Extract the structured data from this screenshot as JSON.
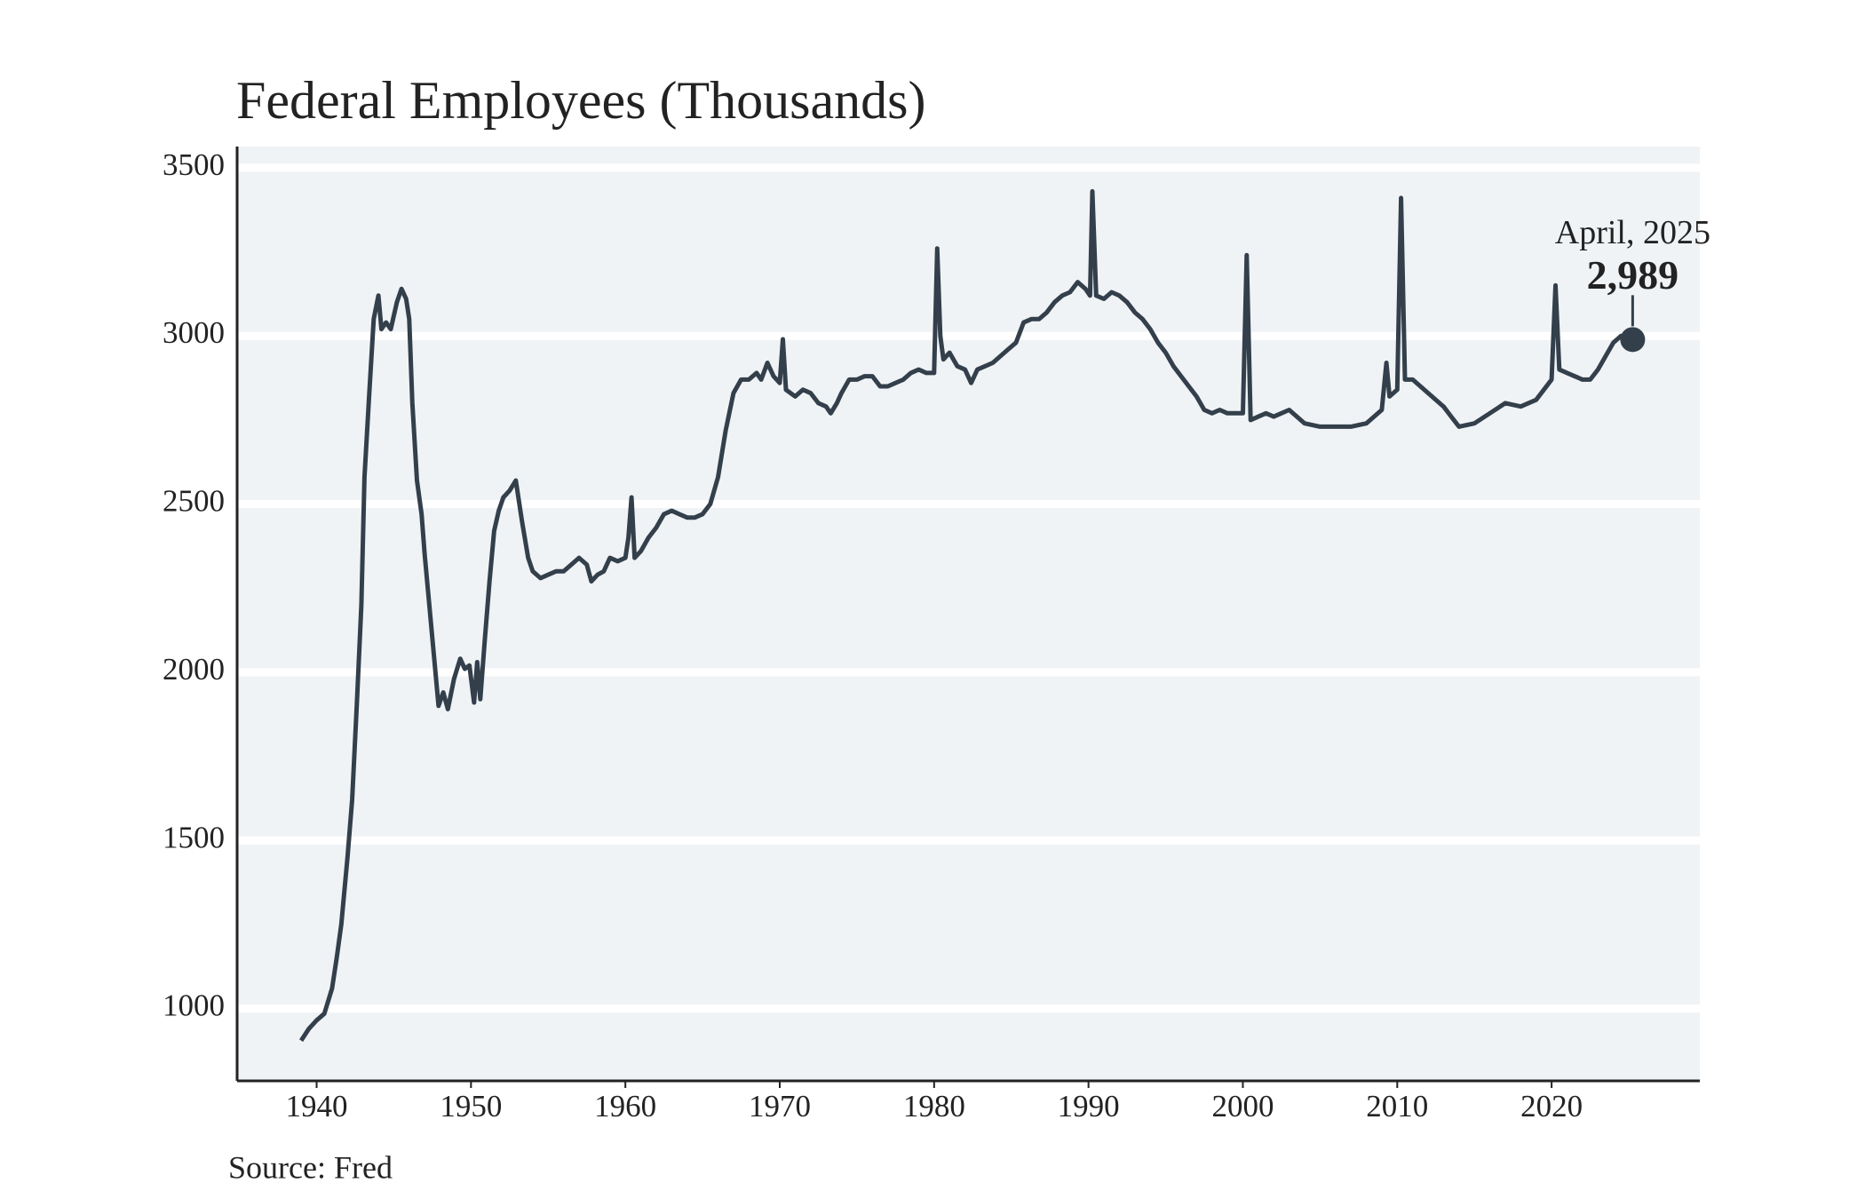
{
  "chart_data": {
    "type": "line",
    "title": "Federal Employees (Thousands)",
    "source": "Source: Fred",
    "xlim": [
      1934.85,
      2029.6
    ],
    "ylim": [
      785,
      3563
    ],
    "xticks": [
      1940,
      1950,
      1960,
      1970,
      1980,
      1990,
      2000,
      2010,
      2020
    ],
    "yticks": [
      1000,
      1500,
      2000,
      2500,
      3000,
      3500
    ],
    "grid": true,
    "background": "#f0f3f6",
    "annotation": {
      "x": 2025.25,
      "label": "April, 2025",
      "value": 2989,
      "value_label": "2,989"
    },
    "series": [
      {
        "color": "#333f4b",
        "x": [
          1939.0,
          1939.5,
          1940.0,
          1940.5,
          1941.0,
          1941.3,
          1941.6,
          1942.0,
          1942.3,
          1942.6,
          1942.9,
          1943.1,
          1943.4,
          1943.7,
          1944.0,
          1944.2,
          1944.5,
          1944.8,
          1945.2,
          1945.5,
          1945.8,
          1946.0,
          1946.2,
          1946.5,
          1946.8,
          1947.0,
          1947.3,
          1947.6,
          1947.9,
          1948.2,
          1948.5,
          1948.9,
          1949.3,
          1949.6,
          1949.9,
          1950.2,
          1950.4,
          1950.6,
          1950.9,
          1951.2,
          1951.5,
          1951.8,
          1952.1,
          1952.5,
          1952.9,
          1953.3,
          1953.7,
          1954.0,
          1954.5,
          1955.0,
          1955.5,
          1956.0,
          1956.5,
          1957.0,
          1957.5,
          1957.8,
          1958.2,
          1958.6,
          1959.0,
          1959.5,
          1960.0,
          1960.2,
          1960.4,
          1960.6,
          1961.0,
          1961.5,
          1962.0,
          1962.5,
          1963.0,
          1963.5,
          1964.0,
          1964.5,
          1965.0,
          1965.5,
          1966.0,
          1966.5,
          1967.0,
          1967.5,
          1968.0,
          1968.5,
          1968.8,
          1969.2,
          1969.6,
          1970.0,
          1970.2,
          1970.4,
          1971.0,
          1971.5,
          1972.0,
          1972.5,
          1973.0,
          1973.3,
          1973.7,
          1974.0,
          1974.5,
          1975.0,
          1975.5,
          1976.0,
          1976.5,
          1977.0,
          1977.5,
          1978.0,
          1978.5,
          1979.0,
          1979.5,
          1980.0,
          1980.2,
          1980.4,
          1980.6,
          1981.0,
          1981.5,
          1982.0,
          1982.4,
          1982.8,
          1983.3,
          1983.8,
          1984.3,
          1984.8,
          1985.3,
          1985.8,
          1986.3,
          1986.8,
          1987.3,
          1987.8,
          1988.3,
          1988.8,
          1989.3,
          1989.8,
          1990.1,
          1990.25,
          1990.5,
          1991.0,
          1991.5,
          1992.0,
          1992.5,
          1993.0,
          1993.5,
          1994.0,
          1994.5,
          1995.0,
          1995.5,
          1996.0,
          1996.5,
          1997.0,
          1997.5,
          1998.0,
          1998.5,
          1999.0,
          1999.5,
          2000.0,
          2000.25,
          2000.5,
          2001.0,
          2001.5,
          2002.0,
          2002.5,
          2003.0,
          2003.5,
          2004.0,
          2005.0,
          2006.0,
          2007.0,
          2008.0,
          2009.0,
          2009.3,
          2009.5,
          2010.0,
          2010.25,
          2010.5,
          2011.0,
          2011.5,
          2012.0,
          2012.5,
          2013.0,
          2013.5,
          2014.0,
          2015.0,
          2016.0,
          2017.0,
          2018.0,
          2019.0,
          2019.5,
          2020.0,
          2020.25,
          2020.5,
          2021.0,
          2022.0,
          2022.5,
          2023.0,
          2023.5,
          2024.0,
          2024.5,
          2025.25
        ],
        "values": [
          905,
          940,
          965,
          985,
          1060,
          1150,
          1250,
          1450,
          1620,
          1900,
          2200,
          2580,
          2820,
          3050,
          3120,
          3020,
          3040,
          3020,
          3100,
          3140,
          3110,
          3050,
          2800,
          2570,
          2470,
          2350,
          2200,
          2050,
          1900,
          1940,
          1890,
          1980,
          2040,
          2010,
          2020,
          1910,
          2030,
          1920,
          2100,
          2270,
          2420,
          2480,
          2520,
          2540,
          2570,
          2450,
          2340,
          2300,
          2280,
          2290,
          2300,
          2300,
          2320,
          2340,
          2320,
          2270,
          2290,
          2300,
          2340,
          2330,
          2340,
          2400,
          2520,
          2340,
          2360,
          2400,
          2430,
          2470,
          2480,
          2470,
          2460,
          2460,
          2470,
          2500,
          2580,
          2720,
          2830,
          2870,
          2870,
          2890,
          2870,
          2920,
          2880,
          2860,
          2990,
          2840,
          2820,
          2840,
          2830,
          2800,
          2790,
          2770,
          2800,
          2830,
          2870,
          2870,
          2880,
          2880,
          2850,
          2850,
          2860,
          2870,
          2890,
          2900,
          2890,
          2890,
          3260,
          3000,
          2930,
          2950,
          2910,
          2900,
          2860,
          2900,
          2910,
          2920,
          2940,
          2960,
          2980,
          3040,
          3050,
          3050,
          3070,
          3100,
          3120,
          3130,
          3160,
          3140,
          3120,
          3430,
          3120,
          3110,
          3130,
          3120,
          3100,
          3070,
          3050,
          3020,
          2980,
          2950,
          2910,
          2880,
          2850,
          2820,
          2780,
          2770,
          2780,
          2770,
          2770,
          2770,
          3240,
          2750,
          2760,
          2770,
          2760,
          2770,
          2780,
          2760,
          2740,
          2730,
          2730,
          2730,
          2740,
          2780,
          2920,
          2820,
          2840,
          3410,
          2870,
          2870,
          2850,
          2830,
          2810,
          2790,
          2760,
          2730,
          2740,
          2770,
          2800,
          2790,
          2810,
          2840,
          2870,
          3150,
          2900,
          2890,
          2870,
          2870,
          2900,
          2940,
          2980,
          3000,
          2989
        ]
      }
    ]
  }
}
